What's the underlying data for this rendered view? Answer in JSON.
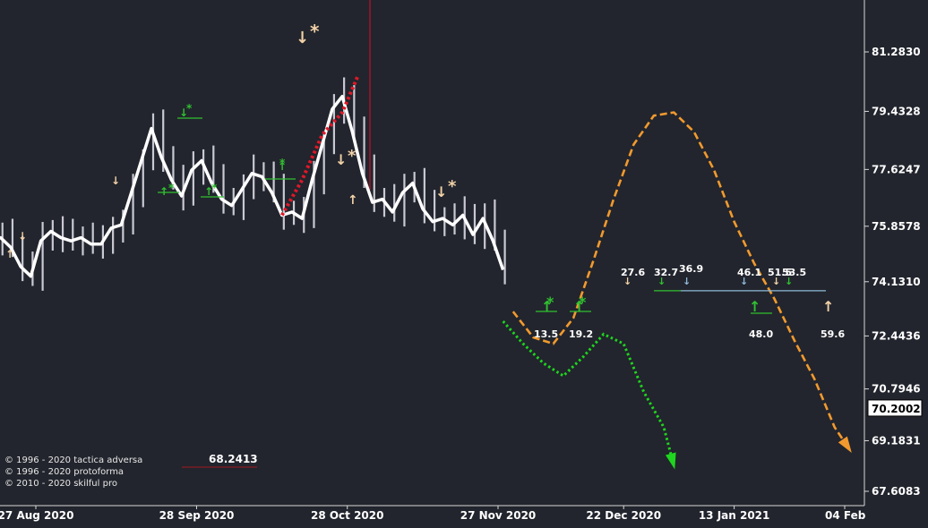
{
  "colors": {
    "background": "#22252d",
    "price_line": "#ffffff",
    "bars": "#c9c9d3",
    "projection_orange": "#f29a2e",
    "projection_green": "#1fd51f",
    "signal_peach": "#f3d2a8",
    "signal_green": "#30c030",
    "trend_red": "#e01828",
    "axis_text": "#ffffff"
  },
  "copyright": [
    "© 1996 - 2020 tactica adversa",
    "© 1996 - 2020 protoforma",
    "© 2010 - 2020 skilful pro"
  ],
  "chart_data": {
    "type": "line",
    "title": "",
    "xlabel": "",
    "ylabel": "",
    "x_ticks": [
      "27 Aug 2020",
      "28 Sep 2020",
      "28 Oct 2020",
      "27 Nov 2020",
      "22 Dec 2020",
      "13 Jan 2021",
      "04 Feb"
    ],
    "y_ticks": [
      "67.6083",
      "69.1831",
      "70.7946",
      "72.4436",
      "74.1310",
      "75.8578",
      "77.6247",
      "79.4328",
      "81.2830"
    ],
    "ylim": [
      67.2,
      83.4
    ],
    "current_price": "70.2002",
    "reference_level": "68.2413",
    "series": [
      {
        "name": "",
        "style": "price",
        "x": [
          "2020-08-18",
          "2020-08-20",
          "2020-08-22",
          "2020-08-24",
          "2020-08-26",
          "2020-08-28",
          "2020-08-30",
          "2020-09-01",
          "2020-09-03",
          "2020-09-05",
          "2020-09-07",
          "2020-09-09",
          "2020-09-11",
          "2020-09-13",
          "2020-09-15",
          "2020-09-17",
          "2020-09-19",
          "2020-09-21",
          "2020-09-23",
          "2020-09-25",
          "2020-09-27",
          "2020-09-29",
          "2020-10-01",
          "2020-10-03",
          "2020-10-05",
          "2020-10-07",
          "2020-10-09",
          "2020-10-11",
          "2020-10-13",
          "2020-10-15",
          "2020-10-17",
          "2020-10-19",
          "2020-10-21",
          "2020-10-23",
          "2020-10-25",
          "2020-10-27",
          "2020-10-29",
          "2020-10-31",
          "2020-11-02",
          "2020-11-04",
          "2020-11-06",
          "2020-11-08",
          "2020-11-10",
          "2020-11-12",
          "2020-11-14",
          "2020-11-16",
          "2020-11-18",
          "2020-11-20",
          "2020-11-22",
          "2020-11-24",
          "2020-11-26",
          "2020-11-28"
        ],
        "y": [
          75.4,
          75.5,
          75.2,
          74.6,
          74.3,
          75.4,
          75.7,
          75.5,
          75.4,
          75.5,
          75.3,
          75.3,
          75.8,
          75.9,
          76.9,
          77.9,
          78.9,
          78.0,
          77.3,
          76.8,
          77.6,
          77.9,
          77.2,
          76.7,
          76.5,
          77.0,
          77.5,
          77.4,
          76.9,
          76.2,
          76.3,
          76.1,
          77.3,
          78.4,
          79.5,
          79.9,
          78.8,
          77.5,
          76.6,
          76.7,
          76.3,
          76.9,
          77.2,
          76.4,
          76.0,
          76.1,
          75.9,
          76.2,
          75.6,
          76.1,
          75.4,
          74.5
        ]
      },
      {
        "name": "",
        "style": "trend_dotted_red",
        "x": [
          "2020-10-15",
          "2020-10-19",
          "2020-10-23",
          "2020-10-27",
          "2020-10-30"
        ],
        "y": [
          76.2,
          77.3,
          78.7,
          79.4,
          80.5
        ]
      },
      {
        "name": "",
        "style": "projection_dashed_orange",
        "x": [
          "2020-11-30",
          "2020-12-04",
          "2020-12-08",
          "2020-12-12",
          "2020-12-16",
          "2020-12-20",
          "2020-12-24",
          "2020-12-28",
          "2021-01-01",
          "2021-01-05",
          "2021-01-09",
          "2021-01-13",
          "2021-01-17",
          "2021-01-21",
          "2021-01-25",
          "2021-01-29",
          "2021-02-02",
          "2021-02-05"
        ],
        "y": [
          73.2,
          72.4,
          72.2,
          73.0,
          74.8,
          76.7,
          78.4,
          79.3,
          79.4,
          78.8,
          77.6,
          76.0,
          74.7,
          73.6,
          72.3,
          71.1,
          69.6,
          68.9
        ]
      },
      {
        "name": "",
        "style": "projection_dotted_green",
        "x": [
          "2020-11-28",
          "2020-12-02",
          "2020-12-06",
          "2020-12-10",
          "2020-12-14",
          "2020-12-18",
          "2020-12-22",
          "2020-12-26",
          "2020-12-30",
          "2021-01-01"
        ],
        "y": [
          72.9,
          72.2,
          71.6,
          71.2,
          71.8,
          72.5,
          72.2,
          70.7,
          69.6,
          68.4
        ]
      }
    ],
    "annotations": [
      {
        "text": "27.6",
        "x": "2020-12-17",
        "y": 74.1
      },
      {
        "text": "32.7",
        "x": "2020-12-21",
        "y": 74.15
      },
      {
        "text": "36.9",
        "x": "2020-12-24",
        "y": 74.25
      },
      {
        "text": "46.1",
        "x": "2021-01-10",
        "y": 74.1
      },
      {
        "text": "51.5",
        "x": "2021-01-14",
        "y": 74.1
      },
      {
        "text": "53.5",
        "x": "2021-01-16",
        "y": 74.1
      },
      {
        "text": "13.5",
        "x": "2020-12-05",
        "y": 72.2
      },
      {
        "text": "19.2",
        "x": "2020-12-12",
        "y": 72.2
      },
      {
        "text": "48.0",
        "x": "2021-01-11",
        "y": 72.2
      },
      {
        "text": "59.6",
        "x": "2021-02-02",
        "y": 72.2
      }
    ]
  }
}
